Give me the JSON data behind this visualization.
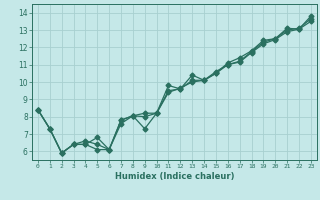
{
  "title": "",
  "xlabel": "Humidex (Indice chaleur)",
  "background_color": "#c5e8e8",
  "grid_color": "#a8d0d0",
  "line_color": "#2a7060",
  "xlim": [
    -0.5,
    23.5
  ],
  "ylim": [
    5.5,
    14.5
  ],
  "xtick_values": [
    0,
    1,
    2,
    3,
    4,
    5,
    6,
    7,
    8,
    9,
    10,
    11,
    12,
    13,
    14,
    15,
    16,
    17,
    18,
    19,
    20,
    21,
    22,
    23
  ],
  "xtick_labels": [
    "0",
    "1",
    "2",
    "3",
    "4",
    "5",
    "6",
    "7",
    "8",
    "9",
    "10",
    "11",
    "12",
    "13",
    "14",
    "15",
    "16",
    "17",
    "18",
    "19",
    "20",
    "21",
    "22",
    "23"
  ],
  "ytick_values": [
    6,
    7,
    8,
    9,
    10,
    11,
    12,
    13,
    14
  ],
  "ytick_labels": [
    "6",
    "7",
    "8",
    "9",
    "10",
    "11",
    "12",
    "13",
    "14"
  ],
  "line1_x": [
    0,
    1,
    2,
    3,
    4,
    5,
    6,
    7,
    8,
    9,
    10,
    11,
    12,
    13,
    14,
    15,
    16,
    17,
    18,
    19,
    20,
    21,
    22,
    23
  ],
  "line1_y": [
    8.4,
    7.3,
    5.9,
    6.4,
    6.4,
    6.8,
    6.1,
    7.8,
    8.05,
    7.3,
    8.2,
    9.8,
    9.6,
    10.4,
    10.1,
    10.5,
    11.1,
    11.4,
    11.8,
    12.4,
    12.5,
    13.1,
    13.05,
    13.8
  ],
  "line2_x": [
    0,
    1,
    2,
    3,
    4,
    5,
    6,
    7,
    8,
    9,
    10,
    11,
    12,
    13,
    14,
    15,
    16,
    17,
    18,
    19,
    20,
    21,
    22,
    23
  ],
  "line2_y": [
    8.4,
    7.3,
    5.9,
    6.4,
    6.4,
    6.1,
    6.1,
    7.8,
    8.05,
    8.2,
    8.2,
    9.5,
    9.6,
    10.1,
    10.1,
    10.6,
    11.0,
    11.2,
    11.75,
    12.3,
    12.5,
    13.0,
    13.1,
    13.65
  ],
  "line3_x": [
    0,
    1,
    2,
    3,
    4,
    5,
    6,
    7,
    8,
    9,
    10,
    11,
    12,
    13,
    14,
    15,
    16,
    17,
    18,
    19,
    20,
    21,
    22,
    23
  ],
  "line3_y": [
    8.4,
    7.3,
    5.9,
    6.4,
    6.6,
    6.4,
    6.1,
    7.6,
    8.05,
    8.0,
    8.2,
    9.4,
    9.65,
    10.0,
    10.1,
    10.5,
    11.0,
    11.15,
    11.7,
    12.2,
    12.45,
    12.9,
    13.05,
    13.5
  ]
}
